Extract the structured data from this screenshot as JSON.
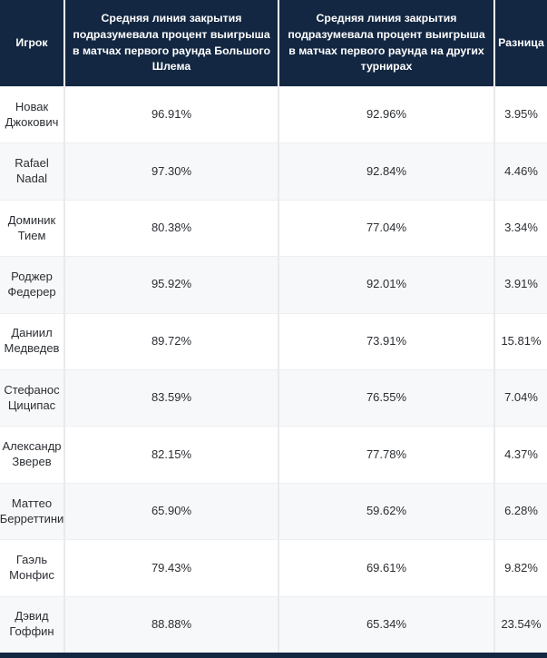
{
  "colors": {
    "header_bg": "#132742",
    "header_text": "#ffffff",
    "row_odd_bg": "#ffffff",
    "row_even_bg": "#f7f8f9",
    "divider": "#e8eaed",
    "body_text": "#2b2e33",
    "bottom_bar_bg": "#132742"
  },
  "chart_data": {
    "type": "table",
    "columns": [
      "Игрок",
      "Средняя линия закрытия подразумевала процент выигрыша в матчах первого раунда Большого Шлема",
      "Средняя линия закрытия подразумевала процент выигрыша в матчах первого раунда на других турнирах",
      "Разница"
    ],
    "rows": [
      [
        "Новак Джокович",
        "96.91%",
        "92.96%",
        "3.95%"
      ],
      [
        "Rafael Nadal",
        "97.30%",
        "92.84%",
        "4.46%"
      ],
      [
        "Доминик Тием",
        "80.38%",
        "77.04%",
        "3.34%"
      ],
      [
        "Роджер Федерер",
        "95.92%",
        "92.01%",
        "3.91%"
      ],
      [
        "Даниил Медведев",
        "89.72%",
        "73.91%",
        "15.81%"
      ],
      [
        "Стефанос Циципас",
        "83.59%",
        "76.55%",
        "7.04%"
      ],
      [
        "Александр Зверев",
        "82.15%",
        "77.78%",
        "4.37%"
      ],
      [
        "Маттео Берреттини",
        "65.90%",
        "59.62%",
        "6.28%"
      ],
      [
        "Гаэль Монфис",
        "79.43%",
        "69.61%",
        "9.82%"
      ],
      [
        "Дэвид Гоффин",
        "88.88%",
        "65.34%",
        "23.54%"
      ]
    ]
  }
}
